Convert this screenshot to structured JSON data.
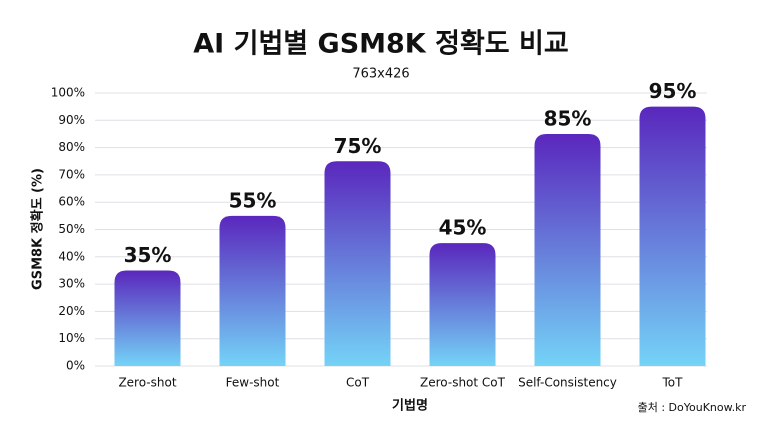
{
  "chart_data": {
    "type": "bar",
    "title": "AI 기법별 GSM8K 정확도 비교",
    "subtitle": "763x426",
    "y_label": "GSM8K 정확도 (%)",
    "x_label": "기법명",
    "source": "출처 : DoYouKnow.kr",
    "categories": [
      "Zero-shot",
      "Few-shot",
      "CoT",
      "Zero-shot CoT",
      "Self-Consistency",
      "ToT"
    ],
    "values": [
      35,
      55,
      75,
      45,
      85,
      95
    ],
    "value_labels": [
      "35%",
      "55%",
      "75%",
      "45%",
      "85%",
      "95%"
    ],
    "gradient_colors": [
      "#5a27bd",
      "#74d3f7"
    ],
    "ylim": [
      0,
      100
    ],
    "yticks": [
      {
        "value": 0,
        "label": "0%"
      },
      {
        "value": 10,
        "label": "10%"
      },
      {
        "value": 20,
        "label": "20%"
      },
      {
        "value": 30,
        "label": "30%"
      },
      {
        "value": 40,
        "label": "40%"
      },
      {
        "value": 50,
        "label": "50%"
      },
      {
        "value": 60,
        "label": "60%"
      },
      {
        "value": 70,
        "label": "70%"
      },
      {
        "value": 80,
        "label": "80%"
      },
      {
        "value": 90,
        "label": "90%"
      },
      {
        "value": 100,
        "label": "100%"
      }
    ],
    "grid": true
  }
}
